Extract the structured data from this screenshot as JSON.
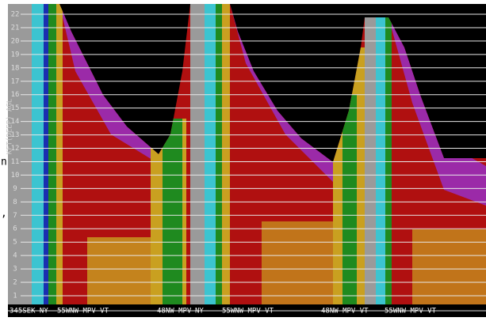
{
  "y_axis": {
    "label": "KFT(DEEP) AGL",
    "ticks": [
      "1",
      "2",
      "3",
      "4",
      "5",
      "6",
      "7",
      "8",
      "9",
      "10",
      "11",
      "12",
      "13",
      "14",
      "15",
      "16",
      "17",
      "18",
      "19",
      "20",
      "21",
      "22"
    ]
  },
  "x_labels": [
    "345SEK NY",
    "55WNW MPV VT",
    "48NW MPV",
    "NY",
    "55WNW MPV VT",
    "48NW MPV VT",
    "55WNW MPV VT"
  ],
  "edge_text": [
    "n",
    ","
  ]
}
